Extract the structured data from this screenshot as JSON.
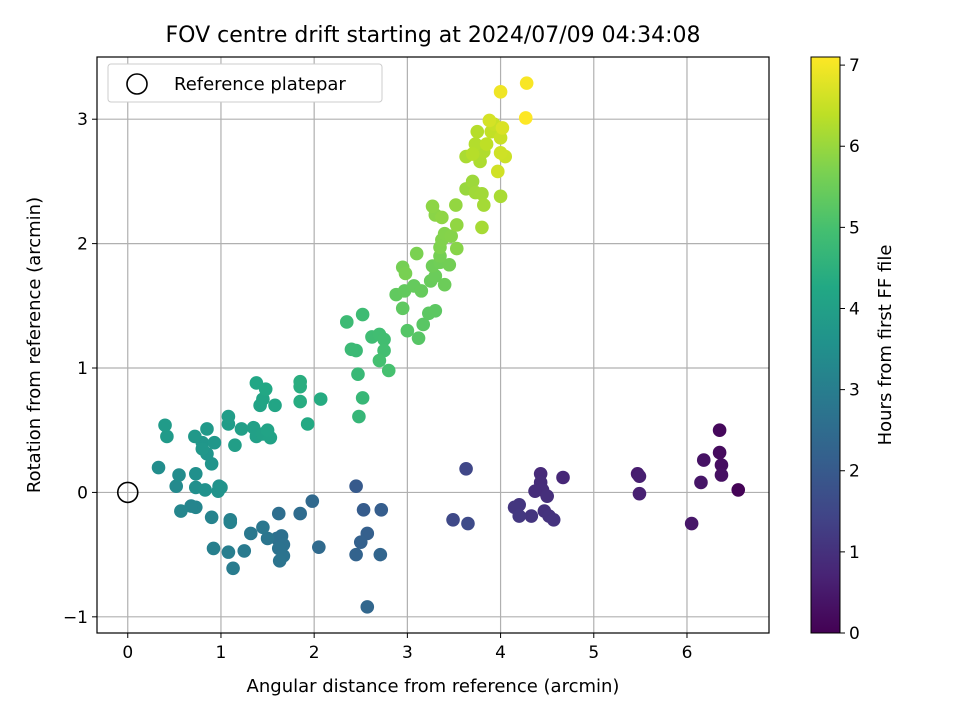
{
  "chart_data": {
    "type": "scatter",
    "title": "FOV centre drift starting at 2024/07/09 04:34:08",
    "xlabel": "Angular distance from reference (arcmin)",
    "ylabel": "Rotation from reference (arcmin)",
    "xlim": [
      -0.33,
      6.88
    ],
    "ylim": [
      -1.13,
      3.5
    ],
    "xticks": [
      0,
      1,
      2,
      3,
      4,
      5,
      6
    ],
    "yticks": [
      -1,
      0,
      1,
      2,
      3
    ],
    "grid": true,
    "legend": {
      "position": "top-left",
      "label": "Reference platepar",
      "marker": "open-circle"
    },
    "reference_point": {
      "x": 0,
      "y": 0
    },
    "colorbar": {
      "label": "Hours from first FF file",
      "colormap": "viridis",
      "range": [
        0,
        7.1
      ],
      "ticks": [
        0,
        1,
        2,
        3,
        4,
        5,
        6,
        7
      ]
    },
    "points": [
      {
        "x": 6.55,
        "y": 0.02,
        "h": 0.05
      },
      {
        "x": 6.35,
        "y": 0.5,
        "h": 0.15
      },
      {
        "x": 6.35,
        "y": 0.32,
        "h": 0.2
      },
      {
        "x": 6.37,
        "y": 0.22,
        "h": 0.25
      },
      {
        "x": 6.37,
        "y": 0.14,
        "h": 0.3
      },
      {
        "x": 6.18,
        "y": 0.26,
        "h": 0.35
      },
      {
        "x": 6.15,
        "y": 0.08,
        "h": 0.4
      },
      {
        "x": 6.05,
        "y": -0.25,
        "h": 0.45
      },
      {
        "x": 5.47,
        "y": 0.15,
        "h": 0.55
      },
      {
        "x": 5.49,
        "y": 0.13,
        "h": 0.6
      },
      {
        "x": 5.49,
        "y": -0.01,
        "h": 0.65
      },
      {
        "x": 4.67,
        "y": 0.12,
        "h": 0.8
      },
      {
        "x": 4.43,
        "y": 0.15,
        "h": 0.85
      },
      {
        "x": 4.43,
        "y": 0.08,
        "h": 0.88
      },
      {
        "x": 4.45,
        "y": 0.02,
        "h": 0.9
      },
      {
        "x": 4.37,
        "y": 0.01,
        "h": 0.92
      },
      {
        "x": 4.5,
        "y": -0.03,
        "h": 0.95
      },
      {
        "x": 4.47,
        "y": -0.15,
        "h": 1.0
      },
      {
        "x": 4.52,
        "y": -0.19,
        "h": 1.02
      },
      {
        "x": 4.57,
        "y": -0.22,
        "h": 1.05
      },
      {
        "x": 4.33,
        "y": -0.19,
        "h": 1.08
      },
      {
        "x": 4.2,
        "y": -0.1,
        "h": 1.1
      },
      {
        "x": 4.15,
        "y": -0.12,
        "h": 1.12
      },
      {
        "x": 4.2,
        "y": -0.19,
        "h": 1.15
      },
      {
        "x": 3.63,
        "y": 0.19,
        "h": 1.5
      },
      {
        "x": 3.49,
        "y": -0.22,
        "h": 1.55
      },
      {
        "x": 3.65,
        "y": -0.25,
        "h": 1.6
      },
      {
        "x": 2.45,
        "y": 0.05,
        "h": 2.0
      },
      {
        "x": 2.53,
        "y": -0.14,
        "h": 2.05
      },
      {
        "x": 2.72,
        "y": -0.14,
        "h": 2.1
      },
      {
        "x": 2.57,
        "y": -0.33,
        "h": 2.15
      },
      {
        "x": 2.5,
        "y": -0.4,
        "h": 2.2
      },
      {
        "x": 2.45,
        "y": -0.5,
        "h": 2.25
      },
      {
        "x": 2.71,
        "y": -0.5,
        "h": 2.3
      },
      {
        "x": 2.57,
        "y": -0.92,
        "h": 2.35
      },
      {
        "x": 1.98,
        "y": -0.07,
        "h": 2.4
      },
      {
        "x": 2.05,
        "y": -0.44,
        "h": 2.45
      },
      {
        "x": 1.85,
        "y": -0.17,
        "h": 2.5
      },
      {
        "x": 1.62,
        "y": -0.17,
        "h": 2.55
      },
      {
        "x": 1.6,
        "y": -0.37,
        "h": 2.6
      },
      {
        "x": 1.65,
        "y": -0.35,
        "h": 2.62
      },
      {
        "x": 1.67,
        "y": -0.42,
        "h": 2.65
      },
      {
        "x": 1.62,
        "y": -0.45,
        "h": 2.68
      },
      {
        "x": 1.67,
        "y": -0.51,
        "h": 2.7
      },
      {
        "x": 1.63,
        "y": -0.55,
        "h": 2.72
      },
      {
        "x": 1.5,
        "y": -0.37,
        "h": 2.75
      },
      {
        "x": 1.45,
        "y": -0.28,
        "h": 2.8
      },
      {
        "x": 1.32,
        "y": -0.33,
        "h": 2.85
      },
      {
        "x": 1.25,
        "y": -0.47,
        "h": 2.9
      },
      {
        "x": 1.13,
        "y": -0.61,
        "h": 2.95
      },
      {
        "x": 1.08,
        "y": -0.48,
        "h": 3.0
      },
      {
        "x": 0.92,
        "y": -0.45,
        "h": 3.05
      },
      {
        "x": 1.1,
        "y": -0.22,
        "h": 3.1
      },
      {
        "x": 1.1,
        "y": -0.24,
        "h": 3.12
      },
      {
        "x": 0.9,
        "y": -0.2,
        "h": 3.15
      },
      {
        "x": 0.73,
        "y": -0.12,
        "h": 3.2
      },
      {
        "x": 0.68,
        "y": -0.11,
        "h": 3.22
      },
      {
        "x": 0.57,
        "y": -0.15,
        "h": 3.25
      },
      {
        "x": 0.52,
        "y": 0.05,
        "h": 3.35
      },
      {
        "x": 0.55,
        "y": 0.14,
        "h": 3.4
      },
      {
        "x": 0.33,
        "y": 0.2,
        "h": 3.45
      },
      {
        "x": 0.73,
        "y": 0.04,
        "h": 3.5
      },
      {
        "x": 0.73,
        "y": 0.15,
        "h": 3.52
      },
      {
        "x": 0.83,
        "y": 0.02,
        "h": 3.55
      },
      {
        "x": 0.98,
        "y": 0.05,
        "h": 3.58
      },
      {
        "x": 0.97,
        "y": 0.01,
        "h": 3.6
      },
      {
        "x": 1.0,
        "y": 0.04,
        "h": 3.62
      },
      {
        "x": 0.9,
        "y": 0.23,
        "h": 3.65
      },
      {
        "x": 0.85,
        "y": 0.31,
        "h": 3.68
      },
      {
        "x": 0.8,
        "y": 0.4,
        "h": 3.7
      },
      {
        "x": 0.8,
        "y": 0.35,
        "h": 3.72
      },
      {
        "x": 0.93,
        "y": 0.4,
        "h": 3.75
      },
      {
        "x": 0.72,
        "y": 0.45,
        "h": 3.78
      },
      {
        "x": 0.85,
        "y": 0.51,
        "h": 3.8
      },
      {
        "x": 0.42,
        "y": 0.45,
        "h": 3.82
      },
      {
        "x": 0.4,
        "y": 0.54,
        "h": 3.85
      },
      {
        "x": 1.08,
        "y": 0.55,
        "h": 3.9
      },
      {
        "x": 1.08,
        "y": 0.61,
        "h": 3.92
      },
      {
        "x": 1.15,
        "y": 0.38,
        "h": 3.95
      },
      {
        "x": 1.22,
        "y": 0.51,
        "h": 3.98
      },
      {
        "x": 1.35,
        "y": 0.52,
        "h": 4.0
      },
      {
        "x": 1.38,
        "y": 0.45,
        "h": 4.02
      },
      {
        "x": 1.45,
        "y": 0.47,
        "h": 4.05
      },
      {
        "x": 1.53,
        "y": 0.44,
        "h": 4.08
      },
      {
        "x": 1.5,
        "y": 0.5,
        "h": 4.1
      },
      {
        "x": 1.42,
        "y": 0.7,
        "h": 4.12
      },
      {
        "x": 1.45,
        "y": 0.75,
        "h": 4.15
      },
      {
        "x": 1.58,
        "y": 0.7,
        "h": 4.18
      },
      {
        "x": 1.38,
        "y": 0.88,
        "h": 4.2
      },
      {
        "x": 1.48,
        "y": 0.83,
        "h": 4.22
      },
      {
        "x": 1.93,
        "y": 0.55,
        "h": 4.3
      },
      {
        "x": 2.07,
        "y": 0.75,
        "h": 4.35
      },
      {
        "x": 1.85,
        "y": 0.73,
        "h": 4.38
      },
      {
        "x": 1.85,
        "y": 0.85,
        "h": 4.4
      },
      {
        "x": 1.85,
        "y": 0.89,
        "h": 4.42
      },
      {
        "x": 2.48,
        "y": 0.61,
        "h": 4.7
      },
      {
        "x": 2.52,
        "y": 0.76,
        "h": 4.72
      },
      {
        "x": 2.47,
        "y": 0.95,
        "h": 4.75
      },
      {
        "x": 2.45,
        "y": 1.14,
        "h": 4.78
      },
      {
        "x": 2.4,
        "y": 1.15,
        "h": 4.8
      },
      {
        "x": 2.35,
        "y": 1.37,
        "h": 4.82
      },
      {
        "x": 2.52,
        "y": 1.43,
        "h": 4.85
      },
      {
        "x": 2.62,
        "y": 1.25,
        "h": 4.88
      },
      {
        "x": 2.7,
        "y": 1.27,
        "h": 4.9
      },
      {
        "x": 2.75,
        "y": 1.23,
        "h": 4.92
      },
      {
        "x": 2.75,
        "y": 1.14,
        "h": 4.95
      },
      {
        "x": 2.7,
        "y": 1.06,
        "h": 4.98
      },
      {
        "x": 2.8,
        "y": 0.98,
        "h": 5.0
      },
      {
        "x": 3.0,
        "y": 1.3,
        "h": 5.2
      },
      {
        "x": 3.12,
        "y": 1.24,
        "h": 5.22
      },
      {
        "x": 3.17,
        "y": 1.35,
        "h": 5.25
      },
      {
        "x": 3.23,
        "y": 1.44,
        "h": 5.28
      },
      {
        "x": 3.3,
        "y": 1.46,
        "h": 5.3
      },
      {
        "x": 2.95,
        "y": 1.48,
        "h": 5.32
      },
      {
        "x": 2.88,
        "y": 1.59,
        "h": 5.35
      },
      {
        "x": 2.97,
        "y": 1.62,
        "h": 5.38
      },
      {
        "x": 3.07,
        "y": 1.66,
        "h": 5.4
      },
      {
        "x": 3.15,
        "y": 1.62,
        "h": 5.42
      },
      {
        "x": 3.25,
        "y": 1.7,
        "h": 5.45
      },
      {
        "x": 3.3,
        "y": 1.74,
        "h": 5.48
      },
      {
        "x": 3.4,
        "y": 1.67,
        "h": 5.5
      },
      {
        "x": 3.27,
        "y": 1.82,
        "h": 5.52
      },
      {
        "x": 3.35,
        "y": 1.85,
        "h": 5.55
      },
      {
        "x": 3.45,
        "y": 1.83,
        "h": 5.58
      },
      {
        "x": 3.35,
        "y": 1.9,
        "h": 5.6
      },
      {
        "x": 2.95,
        "y": 1.81,
        "h": 5.62
      },
      {
        "x": 2.98,
        "y": 1.76,
        "h": 5.65
      },
      {
        "x": 3.1,
        "y": 1.92,
        "h": 5.68
      },
      {
        "x": 3.35,
        "y": 1.97,
        "h": 5.72
      },
      {
        "x": 3.37,
        "y": 2.03,
        "h": 5.75
      },
      {
        "x": 3.4,
        "y": 2.08,
        "h": 5.78
      },
      {
        "x": 3.47,
        "y": 2.06,
        "h": 5.8
      },
      {
        "x": 3.53,
        "y": 1.96,
        "h": 5.82
      },
      {
        "x": 3.3,
        "y": 2.23,
        "h": 5.85
      },
      {
        "x": 3.27,
        "y": 2.3,
        "h": 5.88
      },
      {
        "x": 3.37,
        "y": 2.21,
        "h": 5.9
      },
      {
        "x": 3.53,
        "y": 2.15,
        "h": 5.92
      },
      {
        "x": 3.52,
        "y": 2.31,
        "h": 5.95
      },
      {
        "x": 3.63,
        "y": 2.44,
        "h": 6.0
      },
      {
        "x": 3.7,
        "y": 2.5,
        "h": 6.05
      },
      {
        "x": 3.73,
        "y": 2.41,
        "h": 6.08
      },
      {
        "x": 3.8,
        "y": 2.4,
        "h": 6.1
      },
      {
        "x": 3.82,
        "y": 2.31,
        "h": 6.12
      },
      {
        "x": 3.8,
        "y": 2.13,
        "h": 6.15
      },
      {
        "x": 4.0,
        "y": 2.38,
        "h": 6.18
      },
      {
        "x": 3.63,
        "y": 2.7,
        "h": 6.2
      },
      {
        "x": 3.78,
        "y": 2.66,
        "h": 6.22
      },
      {
        "x": 3.82,
        "y": 2.74,
        "h": 6.25
      },
      {
        "x": 3.73,
        "y": 2.8,
        "h": 6.28
      },
      {
        "x": 3.75,
        "y": 2.9,
        "h": 6.3
      },
      {
        "x": 3.7,
        "y": 2.72,
        "h": 6.32
      },
      {
        "x": 3.85,
        "y": 2.8,
        "h": 6.4
      },
      {
        "x": 3.9,
        "y": 2.9,
        "h": 6.45
      },
      {
        "x": 3.93,
        "y": 2.96,
        "h": 6.5
      },
      {
        "x": 4.0,
        "y": 2.85,
        "h": 6.52
      },
      {
        "x": 4.05,
        "y": 2.7,
        "h": 6.55
      },
      {
        "x": 4.0,
        "y": 2.73,
        "h": 6.58
      },
      {
        "x": 3.97,
        "y": 2.58,
        "h": 6.6
      },
      {
        "x": 3.88,
        "y": 2.99,
        "h": 6.65
      },
      {
        "x": 4.02,
        "y": 2.93,
        "h": 6.7
      },
      {
        "x": 4.0,
        "y": 3.22,
        "h": 6.95
      },
      {
        "x": 4.28,
        "y": 3.29,
        "h": 7.05
      },
      {
        "x": 4.27,
        "y": 3.01,
        "h": 7.1
      }
    ]
  }
}
